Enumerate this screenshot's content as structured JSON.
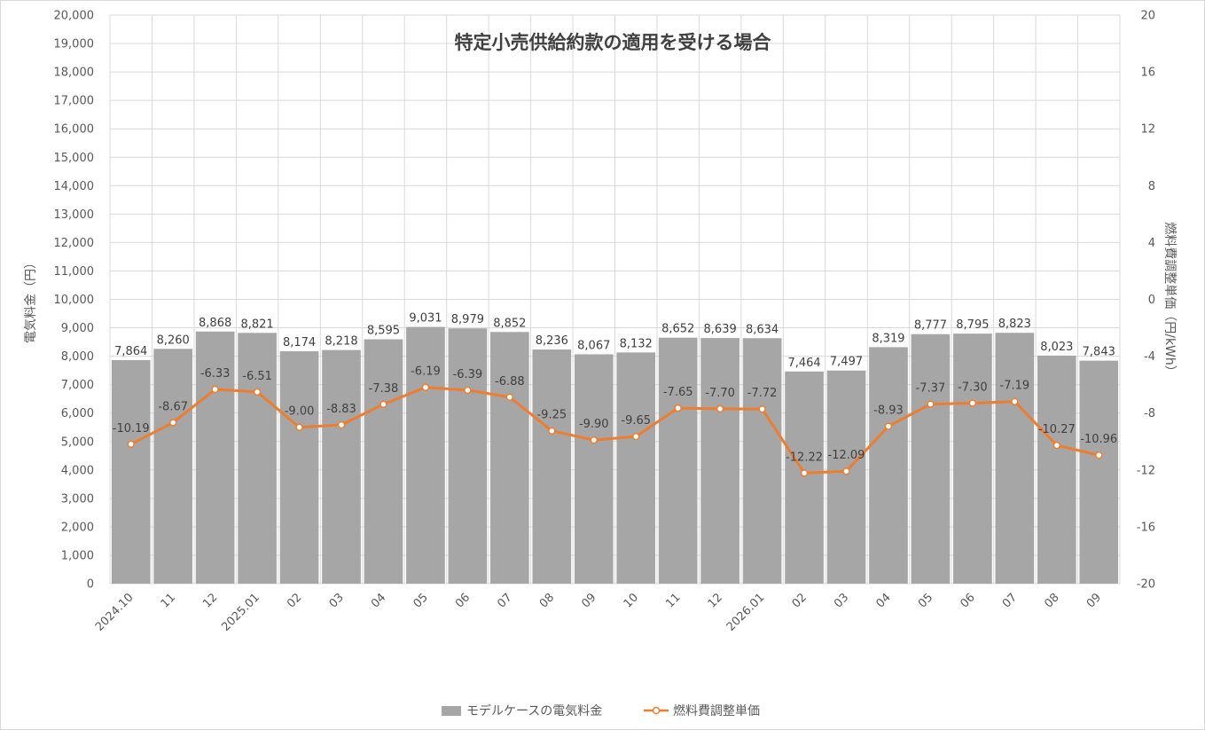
{
  "chart_data": {
    "type": "bar",
    "title": "特定小売供給約款の適用を受ける場合",
    "categories": [
      "2024.10",
      "11",
      "12",
      "2025.01",
      "02",
      "03",
      "04",
      "05",
      "06",
      "07",
      "08",
      "09",
      "10",
      "11",
      "12",
      "2026.01",
      "02",
      "03",
      "04",
      "05",
      "06",
      "07",
      "08",
      "09"
    ],
    "series": [
      {
        "name": "モデルケースの電気料金",
        "type": "bar",
        "axis": "left",
        "color": "#a6a6a6",
        "values": [
          7864,
          8260,
          8868,
          8821,
          8174,
          8218,
          8595,
          9031,
          8979,
          8852,
          8236,
          8067,
          8132,
          8652,
          8639,
          8634,
          7464,
          7497,
          8319,
          8777,
          8795,
          8823,
          8023,
          7843
        ],
        "labels": [
          "7,864",
          "8,260",
          "8,868",
          "8,821",
          "8,174",
          "8,218",
          "8,595",
          "9,031",
          "8,979",
          "8,852",
          "8,236",
          "8,067",
          "8,132",
          "8,652",
          "8,639",
          "8,634",
          "7,464",
          "7,497",
          "8,319",
          "8,777",
          "8,795",
          "8,823",
          "8,023",
          "7,843"
        ]
      },
      {
        "name": "燃料費調整単価",
        "type": "line",
        "axis": "right",
        "color": "#ed7d31",
        "values": [
          -10.19,
          -8.67,
          -6.33,
          -6.51,
          -9.0,
          -8.83,
          -7.38,
          -6.19,
          -6.39,
          -6.88,
          -9.25,
          -9.9,
          -9.65,
          -7.65,
          -7.7,
          -7.72,
          -12.22,
          -12.09,
          -8.93,
          -7.37,
          -7.3,
          -7.19,
          -10.27,
          -10.96
        ],
        "labels": [
          "-10.19",
          "-8.67",
          "-6.33",
          "-6.51",
          "-9.00",
          "-8.83",
          "-7.38",
          "-6.19",
          "-6.39",
          "-6.88",
          "-9.25",
          "-9.90",
          "-9.65",
          "-7.65",
          "-7.70",
          "-7.72",
          "-12.22",
          "-12.09",
          "-8.93",
          "-7.37",
          "-7.30",
          "-7.19",
          "-10.27",
          "-10.96"
        ]
      }
    ],
    "y_left": {
      "label": "電気料金（円）",
      "range": [
        0,
        20000
      ],
      "ticks": [
        0,
        1000,
        2000,
        3000,
        4000,
        5000,
        6000,
        7000,
        8000,
        9000,
        10000,
        11000,
        12000,
        13000,
        14000,
        15000,
        16000,
        17000,
        18000,
        19000,
        20000
      ],
      "tick_labels": [
        "0",
        "1,000",
        "2,000",
        "3,000",
        "4,000",
        "5,000",
        "6,000",
        "7,000",
        "8,000",
        "9,000",
        "10,000",
        "11,000",
        "12,000",
        "13,000",
        "14,000",
        "15,000",
        "16,000",
        "17,000",
        "18,000",
        "19,000",
        "20,000"
      ]
    },
    "y_right": {
      "label": "燃料費調整単価（円/kWh）",
      "range": [
        -20,
        20
      ],
      "ticks": [
        -20,
        -16,
        -12,
        -8,
        -4,
        0,
        4,
        8,
        12,
        16,
        20
      ],
      "tick_labels": [
        "-20",
        "-16",
        "-12",
        "-8",
        "-4",
        "0",
        "4",
        "8",
        "12",
        "16",
        "20"
      ]
    },
    "grid": true,
    "legend_position": "bottom"
  }
}
